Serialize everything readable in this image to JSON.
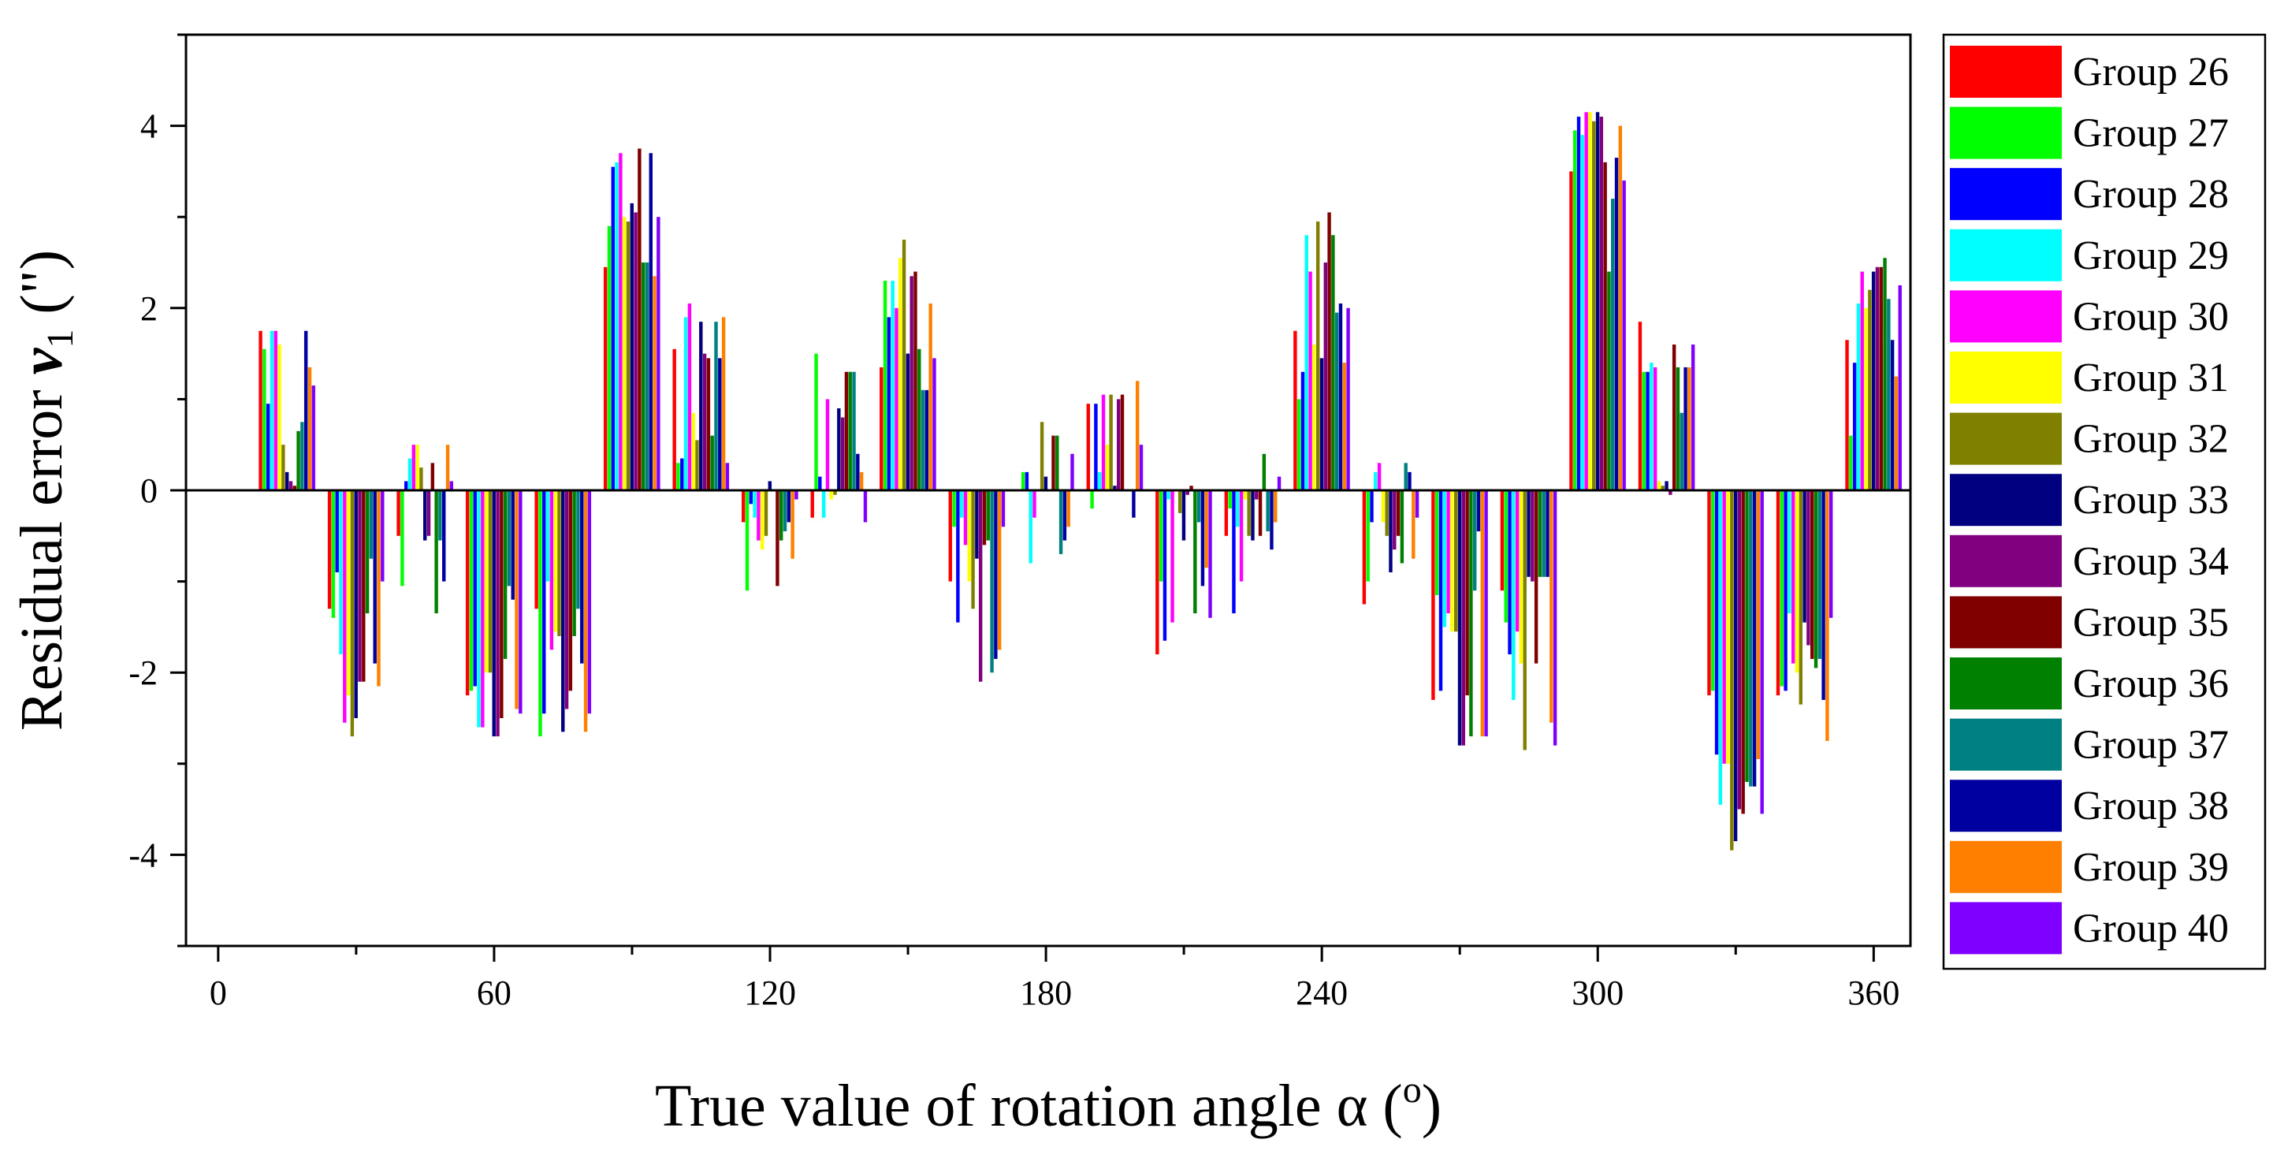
{
  "chart_data": {
    "type": "bar",
    "title": "",
    "xlabel": "True value of rotation angle α (°)",
    "ylabel": "Residual error v₁ (\")",
    "xlabel_parts": {
      "main": "True value of rotation angle α (",
      "sup": "o",
      "close": ")"
    },
    "ylabel_parts": {
      "main": "Residual error ",
      "var": "v",
      "sub": "1",
      "unit": " (\")"
    },
    "xlim": [
      -7,
      368
    ],
    "ylim": [
      -5,
      5
    ],
    "x_ticks": [
      0,
      60,
      120,
      180,
      240,
      300,
      360
    ],
    "y_ticks": [
      -4,
      -2,
      0,
      2,
      4
    ],
    "legend_position": "right",
    "categories": [
      15,
      30,
      45,
      60,
      75,
      90,
      105,
      120,
      135,
      150,
      165,
      180,
      195,
      210,
      225,
      240,
      255,
      270,
      285,
      300,
      315,
      330,
      345,
      360
    ],
    "series": [
      {
        "name": "Group 26",
        "color": "#ff0000",
        "values": [
          1.75,
          -1.3,
          -0.5,
          -2.25,
          -1.3,
          2.45,
          1.55,
          -0.35,
          -0.3,
          1.35,
          -1.0,
          0.0,
          0.95,
          -1.8,
          -0.5,
          1.75,
          -1.25,
          -2.3,
          -1.1,
          3.5,
          1.85,
          -2.25,
          -2.25,
          1.65
        ]
      },
      {
        "name": "Group 27",
        "color": "#00ff00",
        "values": [
          1.55,
          -1.4,
          -1.05,
          -2.2,
          -2.7,
          2.9,
          0.3,
          -1.1,
          1.5,
          2.3,
          -0.4,
          0.2,
          -0.2,
          -1.0,
          -0.2,
          1.0,
          -1.0,
          -1.15,
          -1.45,
          3.95,
          1.3,
          -2.2,
          -2.15,
          0.6
        ]
      },
      {
        "name": "Group 28",
        "color": "#0000ff",
        "values": [
          0.95,
          -0.9,
          0.1,
          -2.15,
          -2.45,
          3.55,
          0.35,
          -0.15,
          0.15,
          1.9,
          -1.45,
          0.2,
          0.95,
          -1.65,
          -1.35,
          1.3,
          -0.35,
          -2.2,
          -1.8,
          4.1,
          1.3,
          -2.9,
          -2.2,
          1.4
        ]
      },
      {
        "name": "Group 29",
        "color": "#00ffff",
        "values": [
          1.75,
          -1.8,
          0.35,
          -2.6,
          -1.0,
          3.6,
          1.9,
          -0.3,
          -0.3,
          2.3,
          -0.3,
          -0.8,
          0.2,
          -0.1,
          -0.4,
          2.8,
          0.2,
          -1.5,
          -2.3,
          3.9,
          1.4,
          -3.45,
          -1.35,
          2.05
        ]
      },
      {
        "name": "Group 30",
        "color": "#ff00ff",
        "values": [
          1.75,
          -2.55,
          0.5,
          -2.6,
          -1.75,
          3.7,
          2.05,
          -0.55,
          1.0,
          2.0,
          -0.6,
          -0.3,
          1.05,
          -1.45,
          -1.0,
          2.4,
          0.3,
          -1.35,
          -1.55,
          4.15,
          1.35,
          -3.0,
          -1.9,
          2.4
        ]
      },
      {
        "name": "Group 31",
        "color": "#ffff00",
        "values": [
          1.6,
          -2.25,
          0.5,
          -2.0,
          -1.55,
          3.0,
          0.85,
          -0.65,
          -0.1,
          2.55,
          -1.0,
          0.0,
          0.5,
          0.0,
          -0.1,
          1.6,
          -0.35,
          -1.55,
          -1.9,
          4.15,
          0.1,
          -3.0,
          -2.0,
          2.0
        ]
      },
      {
        "name": "Group 32",
        "color": "#808000",
        "values": [
          0.5,
          -2.7,
          0.25,
          -2.0,
          -1.6,
          2.95,
          0.55,
          -0.5,
          -0.05,
          2.75,
          -1.3,
          0.75,
          1.05,
          -0.25,
          -0.5,
          2.95,
          -0.5,
          -1.55,
          -2.85,
          4.05,
          0.05,
          -3.95,
          -2.35,
          2.2
        ]
      },
      {
        "name": "Group 33",
        "color": "#000080",
        "values": [
          0.2,
          -2.5,
          -0.55,
          -2.7,
          -2.65,
          3.15,
          1.85,
          0.1,
          0.9,
          1.5,
          -0.75,
          0.15,
          0.05,
          -0.55,
          -0.55,
          1.45,
          -0.9,
          -2.8,
          -0.95,
          4.15,
          0.1,
          -3.85,
          -1.45,
          2.4
        ]
      },
      {
        "name": "Group 34",
        "color": "#800080",
        "values": [
          0.1,
          -2.1,
          -0.5,
          -2.7,
          -2.4,
          3.05,
          1.5,
          0.0,
          0.8,
          2.35,
          -2.1,
          0.0,
          1.0,
          -0.05,
          -0.1,
          2.5,
          -0.65,
          -2.8,
          -1.0,
          4.1,
          -0.05,
          -3.5,
          -1.7,
          2.45
        ]
      },
      {
        "name": "Group 35",
        "color": "#800000",
        "values": [
          0.05,
          -2.1,
          0.3,
          -2.5,
          -2.2,
          3.75,
          1.45,
          -1.05,
          1.3,
          2.4,
          -0.6,
          0.6,
          1.05,
          0.05,
          -0.5,
          3.05,
          -0.5,
          -2.25,
          -1.9,
          3.6,
          1.6,
          -3.55,
          -1.85,
          2.45
        ]
      },
      {
        "name": "Group 36",
        "color": "#008000",
        "values": [
          0.65,
          -1.35,
          -1.35,
          -1.85,
          -1.6,
          2.5,
          0.6,
          -0.55,
          1.3,
          1.55,
          -0.55,
          0.6,
          0.0,
          -1.35,
          0.4,
          2.8,
          -0.8,
          -2.7,
          -0.95,
          2.4,
          1.35,
          -3.2,
          -1.95,
          2.55
        ]
      },
      {
        "name": "Group 37",
        "color": "#008080",
        "values": [
          0.75,
          -0.75,
          -0.55,
          -1.05,
          -1.3,
          2.5,
          1.85,
          -0.45,
          1.3,
          1.1,
          -2.0,
          -0.7,
          0.0,
          -0.35,
          -0.45,
          1.95,
          0.3,
          -1.1,
          -0.95,
          3.2,
          0.85,
          -3.25,
          -1.85,
          2.1
        ]
      },
      {
        "name": "Group 38",
        "color": "#0000a0",
        "values": [
          1.75,
          -1.9,
          -1.0,
          -1.2,
          -1.9,
          3.7,
          1.45,
          -0.35,
          0.4,
          1.1,
          -1.85,
          -0.55,
          -0.3,
          -1.05,
          -0.65,
          2.05,
          0.2,
          -0.45,
          -0.95,
          3.65,
          1.35,
          -3.25,
          -2.3,
          1.65
        ]
      },
      {
        "name": "Group 39",
        "color": "#ff8000",
        "values": [
          1.35,
          -2.15,
          0.5,
          -2.4,
          -2.65,
          2.35,
          1.9,
          -0.75,
          0.2,
          2.05,
          -1.75,
          -0.4,
          1.2,
          -0.85,
          -0.35,
          1.4,
          -0.75,
          -2.7,
          -2.55,
          4.0,
          1.35,
          -2.95,
          -2.75,
          1.25
        ]
      },
      {
        "name": "Group 40",
        "color": "#8000ff",
        "values": [
          1.15,
          -1.0,
          0.1,
          -2.45,
          -2.45,
          3.0,
          0.3,
          -0.1,
          -0.35,
          1.45,
          -0.4,
          0.4,
          0.5,
          -1.4,
          0.15,
          2.0,
          -0.3,
          -2.7,
          -2.8,
          3.4,
          1.6,
          -3.55,
          -1.4,
          2.25
        ]
      }
    ]
  }
}
